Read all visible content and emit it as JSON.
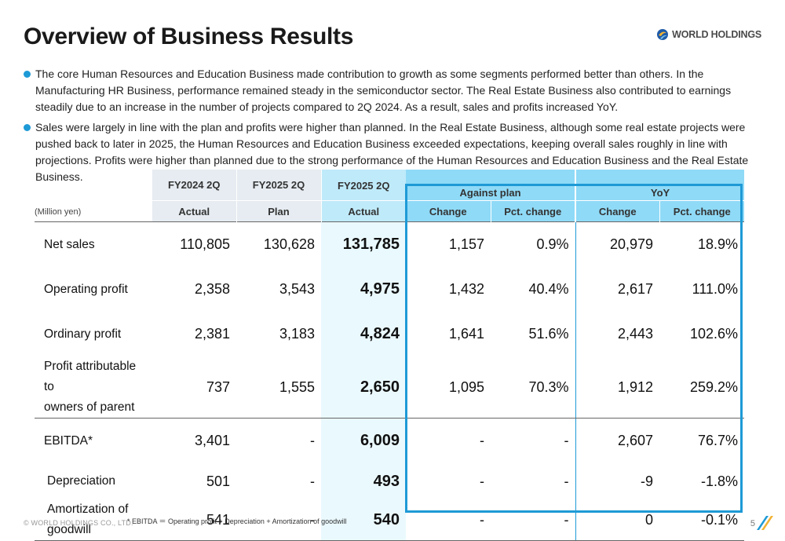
{
  "page": {
    "title": "Overview of Business Results",
    "logo_text": "WORLD HOLDINGS",
    "page_number": "5",
    "copyright": "© WORLD HOLDINGS CO., LTD.",
    "footnote": "* EBITDA ＝ Operating profit + Depreciation + Amortization of goodwill"
  },
  "bullets": [
    "The core Human Resources and Education Business made contribution to growth as some segments performed better than others. In the Manufacturing HR Business, performance remained steady in the semiconductor sector. The Real Estate Business also contributed to earnings steadily due to an increase in the number of projects compared to 2Q 2024. As a result, sales and profits increased YoY.",
    "Sales were largely in line with the plan and profits were higher than planned. In the Real Estate Business, although some real estate projects were pushed back to later in 2025, the Human Resources and Education Business exceeded expectations, keeping overall sales roughly in line with projections. Profits were higher than planned due to the strong performance of the Human Resources and Education Business and the Real Estate Business."
  ],
  "table": {
    "units": "(Million yen)",
    "col_fy2024": "FY2024 2Q",
    "col_fy2025_plan": "FY2025 2Q",
    "col_fy2025_actual": "FY2025 2Q",
    "group_against_plan": "Against plan",
    "group_yoy": "YoY",
    "sub_actual_2024": "Actual",
    "sub_plan": "Plan",
    "sub_actual_2025": "Actual",
    "sub_change_plan": "Change",
    "sub_pct_plan": "Pct. change",
    "sub_change_yoy": "Change",
    "sub_pct_yoy": "Pct. change",
    "rows": [
      {
        "label": "Net sales",
        "values": [
          "110,805",
          "130,628",
          "131,785",
          "1,157",
          "0.9%",
          "20,979",
          "18.9%"
        ]
      },
      {
        "label": "Operating profit",
        "values": [
          "2,358",
          "3,543",
          "4,975",
          "1,432",
          "40.4%",
          "2,617",
          "111.0%"
        ]
      },
      {
        "label": "Ordinary profit",
        "values": [
          "2,381",
          "3,183",
          "4,824",
          "1,641",
          "51.6%",
          "2,443",
          "102.6%"
        ]
      },
      {
        "label_line1": "Profit attributable to",
        "label_line2": "owners of parent",
        "values": [
          "737",
          "1,555",
          "2,650",
          "1,095",
          "70.3%",
          "1,912",
          "259.2%"
        ]
      },
      {
        "label": "EBITDA*",
        "values": [
          "3,401",
          "-",
          "6,009",
          "-",
          "-",
          "2,607",
          "76.7%"
        ]
      },
      {
        "label": "Depreciation",
        "values": [
          "501",
          "-",
          "493",
          "-",
          "-",
          "-9",
          "-1.8%"
        ]
      },
      {
        "label_line1": "Amortization of",
        "label_line2": "goodwill",
        "values": [
          "541",
          "-",
          "540",
          "-",
          "-",
          "0",
          "-0.1%"
        ]
      }
    ]
  },
  "colors": {
    "accent": "#1e9ad6",
    "highlight_column": "#bfeafa",
    "header_blue": "#8fdaf7",
    "header_gray": "#e6ecf1"
  }
}
